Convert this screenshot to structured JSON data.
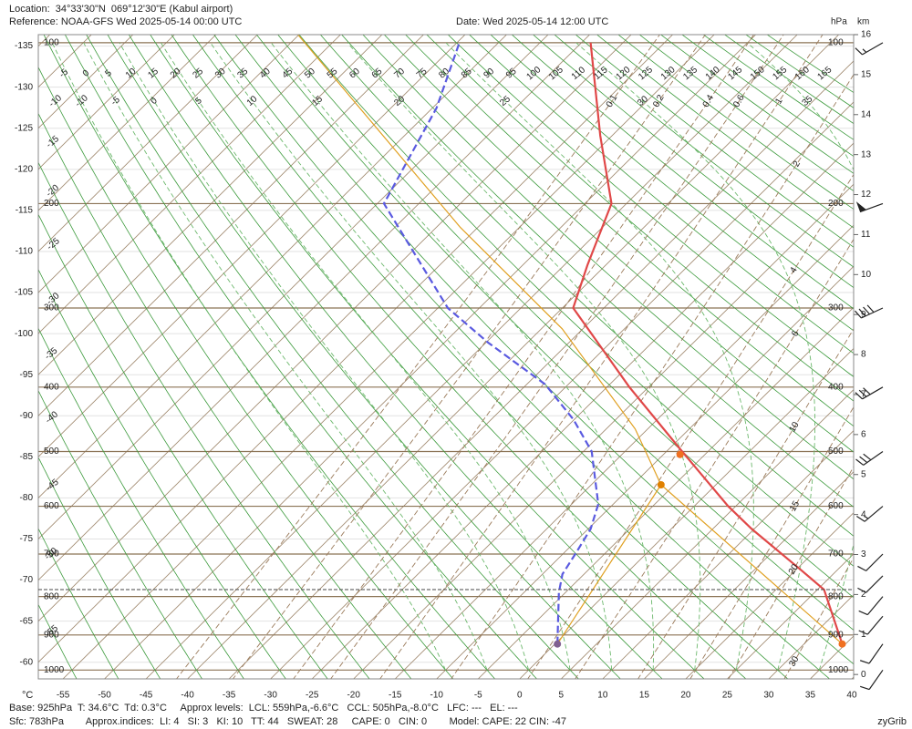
{
  "chart_data": {
    "type": "skewt",
    "location": "Location:  34°33'30\"N  069°12'30\"E (Kabul airport)",
    "reference": "Reference: NOAA-GFS Wed 2025-05-14 00:00 UTC",
    "date": "Date: Wed 2025-05-14 12:00 UTC",
    "pressure_unit": "hPa",
    "height_unit": "km",
    "x_unit": "°C",
    "xlim": [
      -57.97,
      40.22
    ],
    "xticks": [
      -55,
      -50,
      -45,
      -40,
      -35,
      -30,
      -25,
      -20,
      -15,
      -10,
      -5,
      0,
      5,
      10,
      15,
      20,
      25,
      30,
      35,
      40
    ],
    "yticks": [
      -135,
      -130,
      -125,
      -120,
      -115,
      -110,
      -105,
      -100,
      -95,
      -90,
      -85,
      -80,
      -75,
      -70,
      -65,
      -60
    ],
    "y2lim": [
      -0.11,
      16.0
    ],
    "y2ticks": [
      0,
      1,
      2,
      3,
      4,
      5,
      6,
      7,
      8,
      9,
      10,
      11,
      12,
      13,
      14,
      15,
      16
    ],
    "pressure_levels": [
      100,
      200,
      300,
      400,
      500,
      600,
      700,
      800,
      900,
      1000
    ],
    "dry_adiabats": [
      -70,
      -65,
      -60,
      -55,
      -50,
      -45,
      -40,
      -35,
      -30,
      -25,
      -20,
      -15,
      -10,
      -5,
      0,
      5,
      10,
      15,
      20,
      25,
      30,
      35,
      40,
      45,
      50,
      55,
      60,
      65,
      70,
      75,
      80,
      85,
      90,
      95,
      100,
      105,
      110,
      115,
      120,
      125,
      130,
      135,
      140,
      145,
      150,
      155,
      160,
      165
    ],
    "moist_adiabats": [
      -10,
      -5,
      0,
      5,
      10,
      15,
      20,
      25,
      30,
      35
    ],
    "mixing_ratios": [
      0.1,
      0.2,
      0.4,
      0.6,
      1,
      2,
      4,
      6,
      10,
      15,
      20,
      30
    ],
    "surface_pressure": 783,
    "series": [
      {
        "color": "#e04848",
        "dash": false,
        "pressure": [
          925,
          783,
          736,
          646,
          600,
          500,
          400,
          300,
          255,
          200,
          151,
          100
        ],
        "values": [
          34.6,
          25.8,
          20.6,
          9.7,
          4.1,
          -8.1,
          -22.3,
          -38.7,
          -42.2,
          -46.8,
          -56.4,
          -68.9
        ]
      },
      {
        "color": "#5a5ae0",
        "dash": true,
        "pressure": [
          925,
          790,
          746,
          700,
          646,
          596,
          500,
          448,
          396,
          341,
          300,
          200,
          134,
          100
        ],
        "values": [
          0.3,
          -5.8,
          -7.6,
          -8.5,
          -9.7,
          -11.8,
          -19.0,
          -25.1,
          -32.8,
          -44.7,
          -53.8,
          -74.2,
          -79.5,
          -84.7
        ]
      },
      {
        "color": "#e0a020",
        "dash": false,
        "pressure": [
          925,
          559,
          463,
          324,
          220,
          95
        ],
        "values": [
          34.6,
          -6.6,
          -16.5,
          -37.5,
          -62.1,
          -105.8
        ]
      },
      {
        "color": "#e0a020",
        "dash": false,
        "pressure": [
          925,
          559
        ],
        "values": [
          0.3,
          -6.6
        ]
      }
    ],
    "points": [
      {
        "p": 925,
        "t": 34.6,
        "color": "#f07020"
      },
      {
        "p": 925,
        "t": 0.3,
        "color": "#806090"
      },
      {
        "p": 559,
        "t": -6.6,
        "color": "#e08000"
      },
      {
        "p": 505,
        "t": -8.0,
        "color": "#f07020"
      }
    ],
    "winds": {
      "pressure": [
        100,
        200,
        300,
        400,
        500,
        600,
        700,
        750,
        800,
        850,
        925,
        1000
      ],
      "direction": [
        240,
        250,
        245,
        240,
        235,
        230,
        225,
        225,
        220,
        220,
        215,
        215
      ],
      "speed": [
        15,
        50,
        40,
        30,
        30,
        15,
        10,
        10,
        10,
        10,
        10,
        10
      ]
    },
    "footer": [
      "Base: 925hPa  T: 34.6°C  Td: 0.3°C     Approx levels:  LCL: 559hPa,-6.6°C   CCL: 505hPa,-8.0°C   LFC: ---   EL: ---",
      "Sfc: 783hPa        Approx.indices:  LI: 4   SI: 3   KI: 10   TT: 44   SWEAT: 28     CAPE: 0   CIN: 0        Model: CAPE: 22 CIN: -47"
    ],
    "credit": "zyGrib"
  }
}
